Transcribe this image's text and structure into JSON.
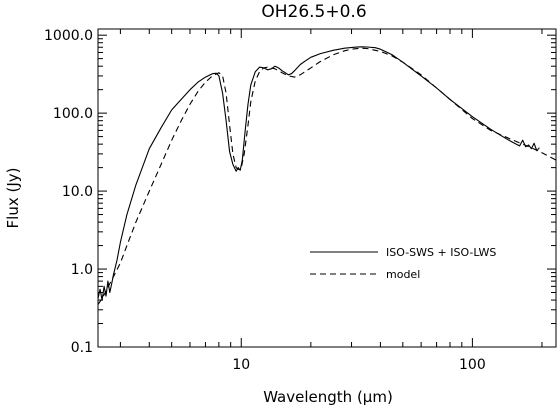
{
  "chart_data": {
    "type": "line",
    "title": "OH26.5+0.6",
    "xlabel": "Wavelength (μm)",
    "ylabel": "Flux (Jy)",
    "x_scale": "log",
    "y_scale": "log",
    "xlim": [
      2.4,
      230
    ],
    "ylim": [
      0.1,
      1200
    ],
    "x_ticks": [
      {
        "value": 10,
        "label": "10"
      },
      {
        "value": 100,
        "label": "100"
      }
    ],
    "y_ticks": [
      {
        "value": 0.1,
        "label": "0.1"
      },
      {
        "value": 1,
        "label": "1.0"
      },
      {
        "value": 10,
        "label": "10.0"
      },
      {
        "value": 100,
        "label": "100.0"
      },
      {
        "value": 1000,
        "label": "1000.0"
      }
    ],
    "legend_position": "right",
    "series": [
      {
        "name": "ISO-SWS + ISO-LWS",
        "style": "solid",
        "color": "#000000",
        "x": [
          2.4,
          2.45,
          2.5,
          2.55,
          2.6,
          2.65,
          2.7,
          2.75,
          2.8,
          2.9,
          3.0,
          3.2,
          3.5,
          4.0,
          4.5,
          5.0,
          5.5,
          6.0,
          6.5,
          7.0,
          7.5,
          7.8,
          8.0,
          8.3,
          8.6,
          8.9,
          9.2,
          9.5,
          9.7,
          9.9,
          10.1,
          10.4,
          10.7,
          11.0,
          11.5,
          12.0,
          12.5,
          13.0,
          13.5,
          14.0,
          14.5,
          15.0,
          15.5,
          16.0,
          16.5,
          17.0,
          18.0,
          19.0,
          20.0,
          22.0,
          25.0,
          28.0,
          31.0,
          33.0,
          35.0,
          38.0,
          40.0,
          45.0,
          50.0,
          60.0,
          70.0,
          80.0,
          100.0,
          120.0,
          140.0,
          150.0,
          155.0,
          160.0,
          165.0,
          170.0,
          175.0,
          180.0,
          185.0,
          190.0,
          195.0
        ],
        "y": [
          0.42,
          0.55,
          0.4,
          0.6,
          0.45,
          0.7,
          0.5,
          0.65,
          0.85,
          1.3,
          2.2,
          5.0,
          12.0,
          35.0,
          65.0,
          110.0,
          150.0,
          200.0,
          250.0,
          290.0,
          320.0,
          325.0,
          300.0,
          180.0,
          80.0,
          32.0,
          22.0,
          18.0,
          20.0,
          18.5,
          25.0,
          60.0,
          130.0,
          230.0,
          340.0,
          390.0,
          380.0,
          360.0,
          370.0,
          400.0,
          380.0,
          350.0,
          330.0,
          310.0,
          320.0,
          350.0,
          420.0,
          470.0,
          520.0,
          580.0,
          640.0,
          680.0,
          700.0,
          710.0,
          705.0,
          690.0,
          660.0,
          560.0,
          450.0,
          300.0,
          210.0,
          150.0,
          90.0,
          62.0,
          47.0,
          42.0,
          40.0,
          38.0,
          45.0,
          37.0,
          39.0,
          35.0,
          41.0,
          33.0,
          36.0
        ]
      },
      {
        "name": "model",
        "style": "dashed",
        "color": "#000000",
        "x": [
          2.4,
          2.5,
          2.6,
          2.7,
          2.8,
          3.0,
          3.2,
          3.5,
          4.0,
          4.5,
          5.0,
          5.5,
          6.0,
          6.5,
          7.0,
          7.5,
          8.0,
          8.3,
          8.6,
          8.9,
          9.2,
          9.5,
          9.7,
          10.0,
          10.3,
          10.7,
          11.0,
          11.5,
          12.0,
          12.5,
          13.0,
          14.0,
          15.0,
          16.0,
          17.0,
          18.0,
          20.0,
          22.0,
          25.0,
          28.0,
          30.0,
          33.0,
          35.0,
          40.0,
          45.0,
          50.0,
          60.0,
          70.0,
          80.0,
          100.0,
          120.0,
          150.0,
          180.0,
          200.0,
          230.0
        ],
        "y": [
          0.35,
          0.42,
          0.52,
          0.65,
          0.8,
          1.2,
          2.0,
          4.0,
          10.0,
          22.0,
          45.0,
          80.0,
          130.0,
          190.0,
          250.0,
          300.0,
          330.0,
          300.0,
          180.0,
          70.0,
          30.0,
          20.0,
          19.0,
          20.0,
          30.0,
          70.0,
          140.0,
          260.0,
          340.0,
          380.0,
          390.0,
          370.0,
          330.0,
          300.0,
          290.0,
          310.0,
          380.0,
          460.0,
          560.0,
          630.0,
          660.0,
          680.0,
          675.0,
          620.0,
          540.0,
          450.0,
          310.0,
          210.0,
          150.0,
          85.0,
          60.0,
          45.0,
          36.0,
          31.0,
          25.0
        ]
      }
    ]
  }
}
